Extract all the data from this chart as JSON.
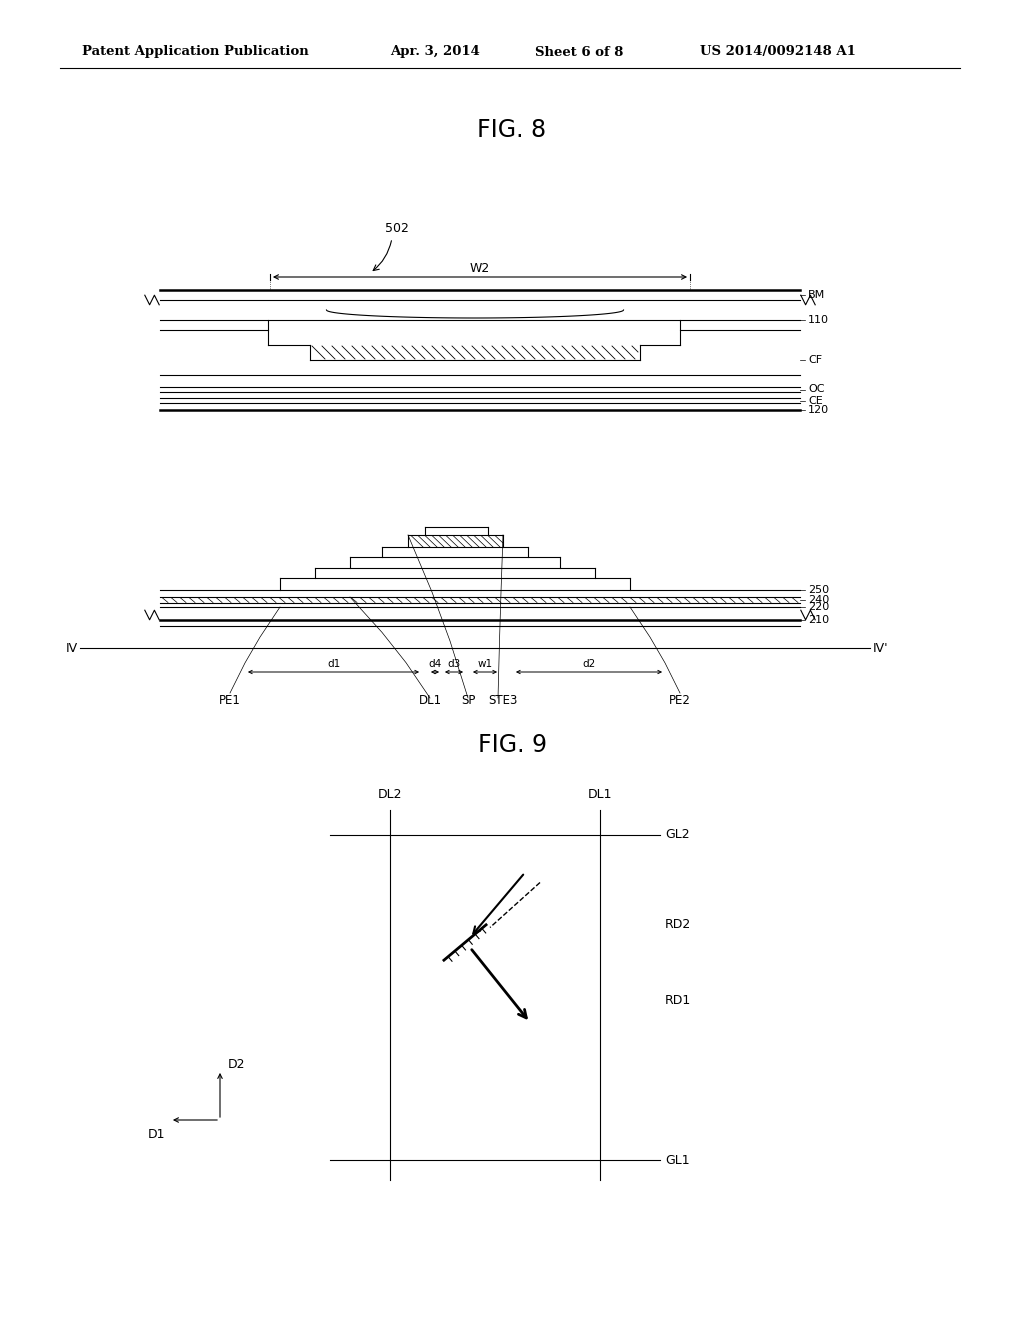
{
  "bg_color": "#ffffff",
  "header_text": "Patent Application Publication",
  "header_date": "Apr. 3, 2014",
  "header_sheet": "Sheet 6 of 8",
  "header_patent": "US 2014/0092148 A1",
  "fig8_title": "FIG. 8",
  "fig9_title": "FIG. 9"
}
